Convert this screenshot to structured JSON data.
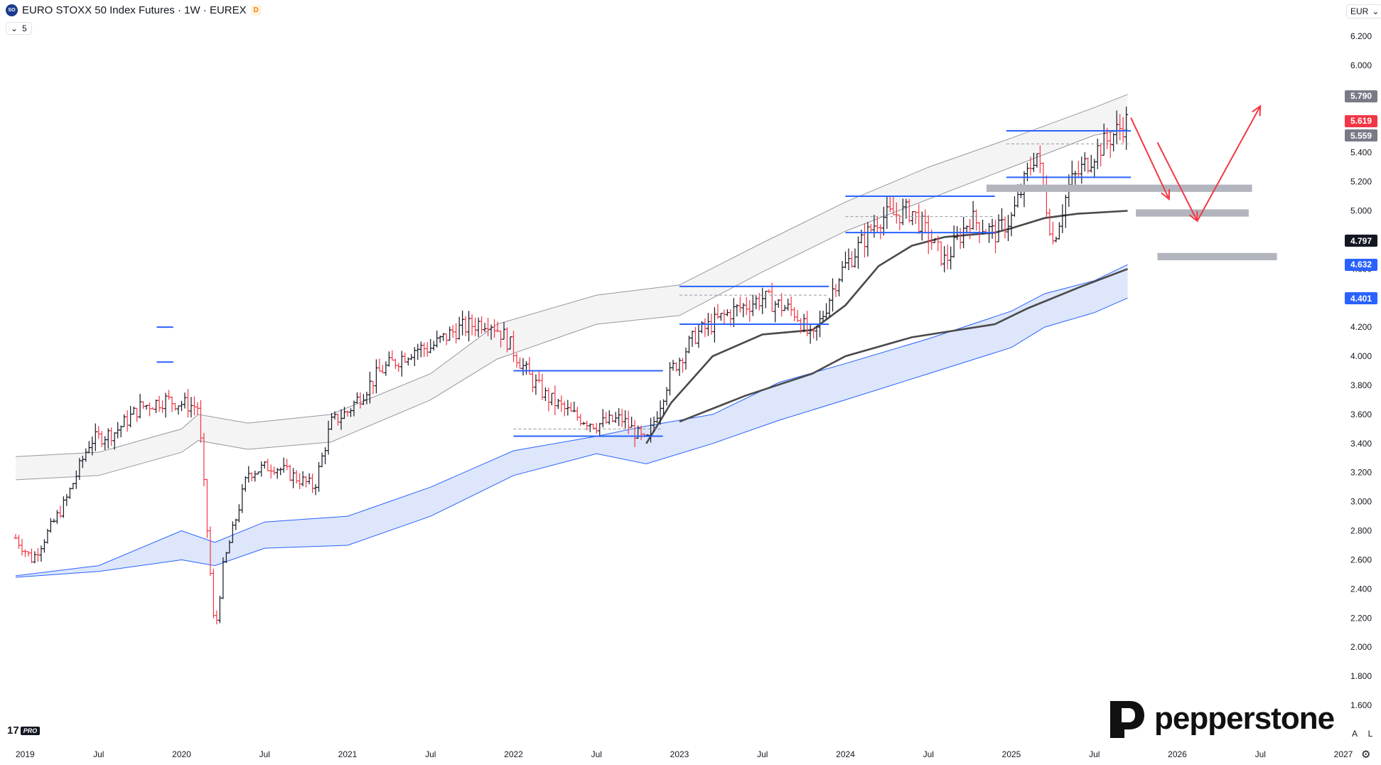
{
  "header": {
    "symbol_badge": "SO",
    "title": "EURO STOXX 50 Index Futures · 1W · EUREX",
    "delay_badge": "D",
    "collapse_chevron": "⌄",
    "indicator_count": "5"
  },
  "currency": {
    "label": "EUR",
    "chevron": "⌄"
  },
  "price_tags": [
    {
      "value": "5.790",
      "color": "#787b86"
    },
    {
      "value": "5.619",
      "color": "#f23645"
    },
    {
      "value": "5.559",
      "color": "#787b86"
    },
    {
      "value": "4.797",
      "color": "#131722"
    },
    {
      "value": "4.632",
      "color": "#2962ff"
    },
    {
      "value": "4.401",
      "color": "#2962ff"
    }
  ],
  "price_tag_prices": [
    5.79,
    5.619,
    5.559,
    4.797,
    4.632,
    4.401
  ],
  "brand": {
    "name": "pepperstone",
    "icon": "pepperstone-logo-icon"
  },
  "tradingview": {
    "logo": "17",
    "pro": "PRO"
  },
  "controls": {
    "auto": "A",
    "log": "L",
    "settings_icon": "⚙"
  },
  "colors": {
    "up_bar": "#131722",
    "down_bar": "#f23645",
    "level_line": "#2962ff",
    "arrow": "#f23645",
    "zone": "#b2b5be",
    "ma_dark": "#4a4a4a",
    "band_blue": "#2962ff",
    "band_fill": "#dde6fb",
    "band_gray": "#9598a1"
  },
  "chart_data": {
    "type": "ohlc",
    "timeframe": "1W",
    "currency": "EUR",
    "y_axis_ticks": [
      "1.600",
      "1.800",
      "2.000",
      "2.200",
      "2.400",
      "2.600",
      "2.800",
      "3.000",
      "3.200",
      "3.400",
      "3.600",
      "3.800",
      "4.000",
      "4.200",
      "4.400",
      "4.600",
      "4.800",
      "5.000",
      "5.200",
      "5.400",
      "5.600",
      "5.800",
      "6.000",
      "6.200"
    ],
    "y_axis_values": [
      1600,
      1800,
      2000,
      2200,
      2400,
      2600,
      2800,
      3000,
      3200,
      3400,
      3600,
      3800,
      4000,
      4200,
      4400,
      4600,
      4800,
      5000,
      5200,
      5400,
      5600,
      5800,
      6000,
      6200
    ],
    "x_axis_ticks": [
      "2019",
      "Jul",
      "2020",
      "Jul",
      "2021",
      "Jul",
      "2022",
      "Jul",
      "2023",
      "Jul",
      "2024",
      "Jul",
      "2025",
      "Jul",
      "2026",
      "Jul",
      "2027"
    ],
    "x_axis_times": [
      2019.0,
      2019.5,
      2020.0,
      2020.5,
      2021.0,
      2021.5,
      2022.0,
      2022.5,
      2023.0,
      2023.5,
      2024.0,
      2024.5,
      2025.0,
      2025.5,
      2026.0,
      2026.5,
      2027.0
    ],
    "ylim": [
      1600,
      6200
    ],
    "series": [
      {
        "name": "",
        "role": "upper-band-top",
        "x": [
          2019.0,
          2019.5,
          2020.0,
          2020.1,
          2020.4,
          2020.9,
          2021.5,
          2021.9,
          2022.5,
          2023.0,
          2023.5,
          2024.0,
          2024.5,
          2025.0,
          2025.5,
          2025.7
        ],
        "values": [
          3310,
          3340,
          3500,
          3600,
          3540,
          3600,
          3880,
          4220,
          4420,
          4490,
          4780,
          5060,
          5300,
          5500,
          5710,
          5800
        ]
      },
      {
        "name": "",
        "role": "upper-band-bottom",
        "x": [
          2019.0,
          2019.5,
          2020.0,
          2020.1,
          2020.4,
          2020.9,
          2021.5,
          2021.9,
          2022.5,
          2023.0,
          2023.5,
          2024.0,
          2024.5,
          2025.0,
          2025.5,
          2025.7
        ],
        "values": [
          3150,
          3180,
          3340,
          3420,
          3360,
          3410,
          3700,
          3980,
          4220,
          4280,
          4580,
          4860,
          5080,
          5300,
          5520,
          5560
        ]
      },
      {
        "name": "",
        "role": "ma-short",
        "x": [
          2022.8,
          2022.95,
          2023.2,
          2023.5,
          2023.8,
          2024.0,
          2024.2,
          2024.4,
          2024.6,
          2024.9,
          2025.0,
          2025.2,
          2025.4,
          2025.7
        ],
        "values": [
          3400,
          3680,
          4000,
          4150,
          4180,
          4350,
          4620,
          4760,
          4820,
          4850,
          4880,
          4950,
          4980,
          5000
        ]
      },
      {
        "name": "",
        "role": "ma-long",
        "x": [
          2023.0,
          2023.4,
          2023.8,
          2024.0,
          2024.4,
          2024.9,
          2025.1,
          2025.4,
          2025.7
        ],
        "values": [
          3550,
          3730,
          3880,
          4000,
          4130,
          4220,
          4330,
          4470,
          4600
        ]
      },
      {
        "name": "",
        "role": "lower-band-top",
        "x": [
          2019.0,
          2019.5,
          2020.0,
          2020.2,
          2020.5,
          2021.0,
          2021.5,
          2022.0,
          2022.5,
          2022.8,
          2023.2,
          2023.6,
          2024.0,
          2024.5,
          2025.0,
          2025.2,
          2025.5,
          2025.7
        ],
        "values": [
          2490,
          2560,
          2800,
          2720,
          2860,
          2900,
          3100,
          3350,
          3450,
          3520,
          3600,
          3820,
          3950,
          4120,
          4310,
          4430,
          4520,
          4630
        ]
      },
      {
        "name": "",
        "role": "lower-band-bottom",
        "x": [
          2019.0,
          2019.5,
          2020.0,
          2020.2,
          2020.5,
          2021.0,
          2021.5,
          2022.0,
          2022.5,
          2022.8,
          2023.2,
          2023.6,
          2024.0,
          2024.5,
          2025.0,
          2025.2,
          2025.5,
          2025.7
        ],
        "values": [
          2480,
          2520,
          2600,
          2560,
          2680,
          2700,
          2900,
          3180,
          3330,
          3260,
          3400,
          3560,
          3700,
          3880,
          4060,
          4200,
          4300,
          4400
        ]
      }
    ],
    "price_anchors": {
      "x": [
        2019.0,
        2019.1,
        2019.3,
        2019.45,
        2019.6,
        2019.75,
        2019.9,
        2020.1,
        2020.2,
        2020.25,
        2020.4,
        2020.55,
        2020.8,
        2020.9,
        2021.0,
        2021.2,
        2021.4,
        2021.5,
        2021.65,
        2021.85,
        2021.95,
        2022.1,
        2022.2,
        2022.35,
        2022.5,
        2022.65,
        2022.8,
        2022.95,
        2023.1,
        2023.3,
        2023.5,
        2023.7,
        2023.8,
        2023.95,
        2024.2,
        2024.4,
        2024.6,
        2024.75,
        2024.9,
        2025.0,
        2025.15,
        2025.25,
        2025.35,
        2025.5,
        2025.7
      ],
      "values": [
        2750,
        2600,
        3000,
        3420,
        3480,
        3650,
        3700,
        3650,
        2080,
        2550,
        3200,
        3250,
        3100,
        3540,
        3620,
        3900,
        4050,
        4060,
        4180,
        4250,
        4130,
        3850,
        3720,
        3600,
        3530,
        3570,
        3400,
        3900,
        4150,
        4300,
        4400,
        4300,
        4100,
        4540,
        4950,
        5000,
        4650,
        4950,
        4840,
        4950,
        5420,
        4790,
        5180,
        5400,
        5619
      ]
    },
    "annotations": {
      "levels": [
        {
          "x": [
            2019.85,
            2019.95
          ],
          "value": 4200,
          "color": "#2962ff"
        },
        {
          "x": [
            2019.85,
            2019.95
          ],
          "value": 3960,
          "color": "#2962ff"
        },
        {
          "x": [
            2022.0,
            2022.9
          ],
          "value": 3900,
          "color": "#2962ff"
        },
        {
          "x": [
            2022.0,
            2022.9
          ],
          "value": 3450,
          "color": "#2962ff"
        },
        {
          "x": [
            2022.0,
            2022.9
          ],
          "value": 3500,
          "color": "#9598a1",
          "dashed": true
        },
        {
          "x": [
            2023.0,
            2023.9
          ],
          "value": 4480,
          "color": "#2962ff"
        },
        {
          "x": [
            2023.0,
            2023.9
          ],
          "value": 4220,
          "color": "#2962ff"
        },
        {
          "x": [
            2023.0,
            2023.9
          ],
          "value": 4420,
          "color": "#9598a1",
          "dashed": true
        },
        {
          "x": [
            2024.0,
            2024.9
          ],
          "value": 5100,
          "color": "#2962ff"
        },
        {
          "x": [
            2024.0,
            2024.9
          ],
          "value": 4850,
          "color": "#2962ff"
        },
        {
          "x": [
            2024.0,
            2024.9
          ],
          "value": 4960,
          "color": "#9598a1",
          "dashed": true
        },
        {
          "x": [
            2024.97,
            2025.72
          ],
          "value": 5550,
          "color": "#2962ff"
        },
        {
          "x": [
            2024.97,
            2025.72
          ],
          "value": 5230,
          "color": "#2962ff"
        },
        {
          "x": [
            2024.97,
            2025.72
          ],
          "value": 5460,
          "color": "#9598a1",
          "dashed": true
        }
      ],
      "zones": [
        {
          "x": [
            2024.85,
            2026.45
          ],
          "low": 5130,
          "high": 5180
        },
        {
          "x": [
            2025.75,
            2026.43
          ],
          "low": 4960,
          "high": 5010
        },
        {
          "x": [
            2025.88,
            2026.6
          ],
          "low": 4660,
          "high": 4710
        }
      ],
      "arrows": [
        {
          "x": [
            2025.72,
            2025.95
          ],
          "values": [
            5640,
            5080
          ]
        },
        {
          "x": [
            2025.88,
            2026.12
          ],
          "values": [
            5470,
            4930
          ]
        },
        {
          "x": [
            2026.12,
            2026.5
          ],
          "values": [
            4930,
            5720
          ]
        }
      ]
    }
  }
}
